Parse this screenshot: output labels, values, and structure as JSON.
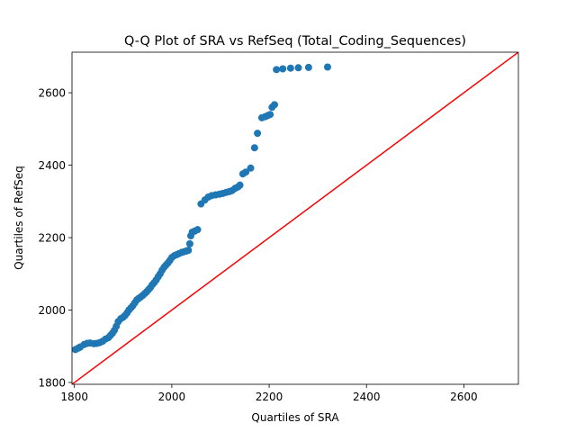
{
  "chart_data": {
    "type": "scatter",
    "title": "Q-Q Plot of SRA vs RefSeq (Total_Coding_Sequences)",
    "xlabel": "Quartiles of SRA",
    "ylabel": "Quartiles of RefSeq",
    "xlim": [
      1795,
      2712
    ],
    "ylim": [
      1795,
      2712
    ],
    "xticks": [
      1800,
      2000,
      2200,
      2400,
      2600
    ],
    "yticks": [
      1800,
      2000,
      2200,
      2400,
      2600
    ],
    "grid": false,
    "legend": "none",
    "colors": {
      "points": "#1f77b4",
      "reference_line": "#ff0000"
    },
    "reference_line": {
      "from": [
        1795,
        1795
      ],
      "to": [
        2712,
        2712
      ]
    },
    "series": [
      {
        "points": [
          [
            1802,
            1891
          ],
          [
            1808,
            1895
          ],
          [
            1812,
            1898
          ],
          [
            1820,
            1905
          ],
          [
            1826,
            1908
          ],
          [
            1832,
            1909
          ],
          [
            1840,
            1907
          ],
          [
            1846,
            1908
          ],
          [
            1852,
            1910
          ],
          [
            1858,
            1914
          ],
          [
            1864,
            1920
          ],
          [
            1870,
            1924
          ],
          [
            1874,
            1930
          ],
          [
            1878,
            1936
          ],
          [
            1882,
            1944
          ],
          [
            1886,
            1955
          ],
          [
            1890,
            1968
          ],
          [
            1895,
            1976
          ],
          [
            1900,
            1980
          ],
          [
            1904,
            1985
          ],
          [
            1908,
            1992
          ],
          [
            1912,
            2000
          ],
          [
            1916,
            2006
          ],
          [
            1920,
            2012
          ],
          [
            1924,
            2020
          ],
          [
            1928,
            2028
          ],
          [
            1932,
            2032
          ],
          [
            1936,
            2036
          ],
          [
            1940,
            2040
          ],
          [
            1944,
            2045
          ],
          [
            1948,
            2050
          ],
          [
            1952,
            2056
          ],
          [
            1956,
            2062
          ],
          [
            1960,
            2070
          ],
          [
            1964,
            2076
          ],
          [
            1968,
            2083
          ],
          [
            1972,
            2092
          ],
          [
            1976,
            2100
          ],
          [
            1980,
            2110
          ],
          [
            1984,
            2118
          ],
          [
            1988,
            2124
          ],
          [
            1992,
            2130
          ],
          [
            1996,
            2137
          ],
          [
            2000,
            2145
          ],
          [
            2005,
            2150
          ],
          [
            2010,
            2153
          ],
          [
            2015,
            2156
          ],
          [
            2020,
            2159
          ],
          [
            2025,
            2161
          ],
          [
            2030,
            2163
          ],
          [
            2034,
            2165
          ],
          [
            2037,
            2183
          ],
          [
            2039,
            2205
          ],
          [
            2042,
            2215
          ],
          [
            2047,
            2218
          ],
          [
            2053,
            2222
          ],
          [
            2060,
            2293
          ],
          [
            2068,
            2304
          ],
          [
            2075,
            2312
          ],
          [
            2082,
            2316
          ],
          [
            2090,
            2318
          ],
          [
            2098,
            2320
          ],
          [
            2105,
            2322
          ],
          [
            2112,
            2325
          ],
          [
            2118,
            2327
          ],
          [
            2124,
            2330
          ],
          [
            2130,
            2336
          ],
          [
            2136,
            2340
          ],
          [
            2140,
            2345
          ],
          [
            2146,
            2376
          ],
          [
            2152,
            2381
          ],
          [
            2162,
            2392
          ],
          [
            2170,
            2448
          ],
          [
            2176,
            2488
          ],
          [
            2185,
            2531
          ],
          [
            2192,
            2534
          ],
          [
            2197,
            2537
          ],
          [
            2202,
            2540
          ],
          [
            2206,
            2560
          ],
          [
            2211,
            2567
          ],
          [
            2215,
            2664
          ],
          [
            2228,
            2666
          ],
          [
            2244,
            2668
          ],
          [
            2260,
            2669
          ],
          [
            2281,
            2670
          ],
          [
            2320,
            2671
          ]
        ]
      }
    ]
  }
}
